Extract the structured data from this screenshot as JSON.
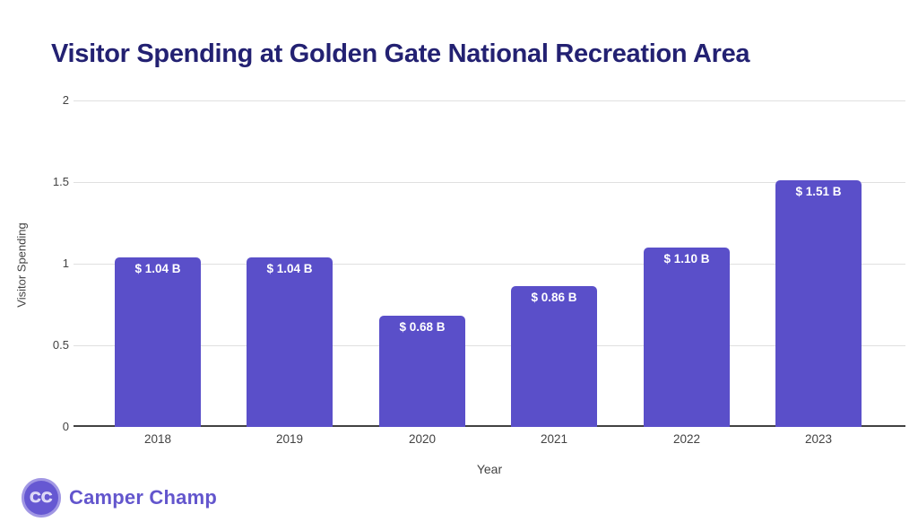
{
  "chart_data": {
    "type": "bar",
    "title": "Visitor Spending at Golden Gate National Recreation Area",
    "xlabel": "Year",
    "ylabel": "Visitor Spending",
    "categories": [
      "2018",
      "2019",
      "2020",
      "2021",
      "2022",
      "2023"
    ],
    "values": [
      1.04,
      1.04,
      0.68,
      0.86,
      1.1,
      1.51
    ],
    "bar_labels": [
      "$ 1.04 B",
      "$ 1.04 B",
      "$ 0.68 B",
      "$ 0.86 B",
      "$ 1.10 B",
      "$ 1.51 B"
    ],
    "ylim": [
      0,
      2
    ],
    "yticks": [
      0,
      0.5,
      1,
      1.5,
      2
    ],
    "ytick_labels": [
      "0",
      "0.5",
      "1",
      "1.5",
      "2"
    ],
    "grid": true,
    "legend": false
  },
  "colors": {
    "title": "#232172",
    "bar": "#5a4fc9",
    "bar_label": "#ffffff",
    "axis_text": "#424242",
    "gridline": "#e0e0e0",
    "baseline": "#424242",
    "logo_wordmark": "#6356cd",
    "logo_circle": "#6658d2",
    "logo_letters": "#d6d0f4"
  },
  "logo": {
    "icon_text": "CC",
    "wordmark": "Camper Champ"
  }
}
